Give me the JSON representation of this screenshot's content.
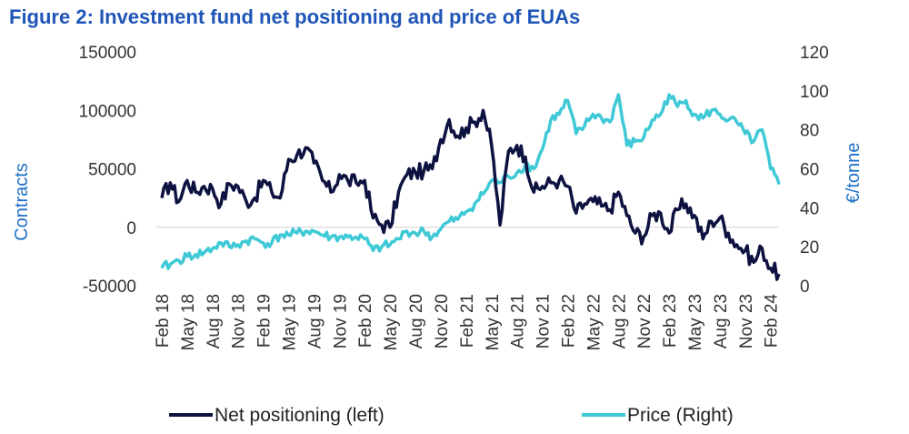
{
  "title": "Figure 2: Investment fund net positioning and price of EUAs",
  "colors": {
    "title": "#1f56b8",
    "net": "#0d1240",
    "price": "#3fc9d6",
    "axis_title": "#1f70c8",
    "zero_line": "#d0d0d0"
  },
  "chart_data": {
    "type": "line",
    "title": "Figure 2: Investment fund net positioning and price of EUAs",
    "xlabel": "",
    "ylabel_left": "Contracts",
    "ylabel_right": "€/tonne",
    "ylim_left": [
      -50000,
      150000
    ],
    "yticks_left": [
      -50000,
      0,
      50000,
      100000,
      150000
    ],
    "ylim_right": [
      0,
      120
    ],
    "yticks_right": [
      0,
      20,
      40,
      60,
      80,
      100,
      120
    ],
    "grid": false,
    "legend_position": "bottom",
    "x_tick_labels": [
      "Feb 18",
      "May 18",
      "Aug 18",
      "Nov 18",
      "Feb 19",
      "May 19",
      "Aug 19",
      "Nov 19",
      "Feb 20",
      "May 20",
      "Aug 20",
      "Nov 20",
      "Feb 21",
      "May 21",
      "Aug 21",
      "Nov 21",
      "Feb 22",
      "May 22",
      "Aug 22",
      "Nov 22",
      "Feb 23",
      "May 23",
      "Aug 23",
      "Nov 23",
      "Feb 24"
    ],
    "x_start": "2018-02",
    "series": [
      {
        "name": "Net positioning (left)",
        "axis": "left",
        "points": [
          [
            "2018-02",
            25000
          ],
          [
            "2018-03",
            38000
          ],
          [
            "2018-04",
            22000
          ],
          [
            "2018-05",
            40000
          ],
          [
            "2018-06",
            30000
          ],
          [
            "2018-07",
            35000
          ],
          [
            "2018-08",
            33000
          ],
          [
            "2018-09",
            20000
          ],
          [
            "2018-10",
            37000
          ],
          [
            "2018-11",
            35000
          ],
          [
            "2018-12",
            22000
          ],
          [
            "2019-01",
            25000
          ],
          [
            "2019-02",
            40000
          ],
          [
            "2019-03",
            30000
          ],
          [
            "2019-04",
            25000
          ],
          [
            "2019-05",
            58000
          ],
          [
            "2019-06",
            62000
          ],
          [
            "2019-07",
            68000
          ],
          [
            "2019-08",
            55000
          ],
          [
            "2019-09",
            40000
          ],
          [
            "2019-10",
            30000
          ],
          [
            "2019-11",
            45000
          ],
          [
            "2019-12",
            40000
          ],
          [
            "2020-01",
            38000
          ],
          [
            "2020-02",
            40000
          ],
          [
            "2020-03",
            8000
          ],
          [
            "2020-04",
            2000
          ],
          [
            "2020-05",
            0
          ],
          [
            "2020-06",
            30000
          ],
          [
            "2020-07",
            45000
          ],
          [
            "2020-08",
            47000
          ],
          [
            "2020-09",
            48000
          ],
          [
            "2020-10",
            50000
          ],
          [
            "2020-11",
            75000
          ],
          [
            "2020-12",
            92000
          ],
          [
            "2021-01",
            78000
          ],
          [
            "2021-02",
            85000
          ],
          [
            "2021-03",
            90000
          ],
          [
            "2021-04",
            100000
          ],
          [
            "2021-05",
            70000
          ],
          [
            "2021-06",
            2000
          ],
          [
            "2021-07",
            65000
          ],
          [
            "2021-08",
            70000
          ],
          [
            "2021-09",
            60000
          ],
          [
            "2021-10",
            30000
          ],
          [
            "2021-11",
            35000
          ],
          [
            "2021-12",
            38000
          ],
          [
            "2022-01",
            40000
          ],
          [
            "2022-02",
            35000
          ],
          [
            "2022-03",
            12000
          ],
          [
            "2022-04",
            20000
          ],
          [
            "2022-05",
            22000
          ],
          [
            "2022-06",
            18000
          ],
          [
            "2022-07",
            15000
          ],
          [
            "2022-08",
            30000
          ],
          [
            "2022-09",
            10000
          ],
          [
            "2022-10",
            -5000
          ],
          [
            "2022-11",
            -8000
          ],
          [
            "2022-12",
            10000
          ],
          [
            "2023-01",
            12000
          ],
          [
            "2023-02",
            -5000
          ],
          [
            "2023-03",
            15000
          ],
          [
            "2023-04",
            20000
          ],
          [
            "2023-05",
            10000
          ],
          [
            "2023-06",
            -10000
          ],
          [
            "2023-07",
            5000
          ],
          [
            "2023-08",
            8000
          ],
          [
            "2023-09",
            -5000
          ],
          [
            "2023-10",
            -15000
          ],
          [
            "2023-11",
            -20000
          ],
          [
            "2023-12",
            -30000
          ],
          [
            "2024-01",
            -18000
          ],
          [
            "2024-02",
            -35000
          ],
          [
            "2024-03",
            -40000
          ]
        ]
      },
      {
        "name": "Price (Right)",
        "axis": "right",
        "points": [
          [
            "2018-02",
            9
          ],
          [
            "2018-03",
            11
          ],
          [
            "2018-04",
            13
          ],
          [
            "2018-05",
            15
          ],
          [
            "2018-06",
            16
          ],
          [
            "2018-07",
            17
          ],
          [
            "2018-08",
            19
          ],
          [
            "2018-09",
            22
          ],
          [
            "2018-10",
            20
          ],
          [
            "2018-11",
            21
          ],
          [
            "2018-12",
            23
          ],
          [
            "2019-01",
            24
          ],
          [
            "2019-02",
            22
          ],
          [
            "2019-03",
            22
          ],
          [
            "2019-04",
            26
          ],
          [
            "2019-05",
            26
          ],
          [
            "2019-06",
            27
          ],
          [
            "2019-07",
            28
          ],
          [
            "2019-08",
            28
          ],
          [
            "2019-09",
            26
          ],
          [
            "2019-10",
            25
          ],
          [
            "2019-11",
            25
          ],
          [
            "2019-12",
            25
          ],
          [
            "2020-01",
            25
          ],
          [
            "2020-02",
            24
          ],
          [
            "2020-03",
            18
          ],
          [
            "2020-04",
            20
          ],
          [
            "2020-05",
            21
          ],
          [
            "2020-06",
            24
          ],
          [
            "2020-07",
            28
          ],
          [
            "2020-08",
            27
          ],
          [
            "2020-09",
            28
          ],
          [
            "2020-10",
            25
          ],
          [
            "2020-11",
            29
          ],
          [
            "2020-12",
            33
          ],
          [
            "2021-01",
            34
          ],
          [
            "2021-02",
            38
          ],
          [
            "2021-03",
            42
          ],
          [
            "2021-04",
            47
          ],
          [
            "2021-05",
            54
          ],
          [
            "2021-06",
            53
          ],
          [
            "2021-07",
            56
          ],
          [
            "2021-08",
            58
          ],
          [
            "2021-09",
            62
          ],
          [
            "2021-10",
            60
          ],
          [
            "2021-11",
            70
          ],
          [
            "2021-12",
            85
          ],
          [
            "2022-01",
            88
          ],
          [
            "2022-02",
            95
          ],
          [
            "2022-03",
            78
          ],
          [
            "2022-04",
            82
          ],
          [
            "2022-05",
            88
          ],
          [
            "2022-06",
            86
          ],
          [
            "2022-07",
            84
          ],
          [
            "2022-08",
            98
          ],
          [
            "2022-09",
            72
          ],
          [
            "2022-10",
            74
          ],
          [
            "2022-11",
            76
          ],
          [
            "2022-12",
            85
          ],
          [
            "2023-01",
            88
          ],
          [
            "2023-02",
            98
          ],
          [
            "2023-03",
            92
          ],
          [
            "2023-04",
            95
          ],
          [
            "2023-05",
            88
          ],
          [
            "2023-06",
            86
          ],
          [
            "2023-07",
            90
          ],
          [
            "2023-08",
            88
          ],
          [
            "2023-09",
            85
          ],
          [
            "2023-10",
            84
          ],
          [
            "2023-11",
            78
          ],
          [
            "2023-12",
            74
          ],
          [
            "2024-01",
            80
          ],
          [
            "2024-02",
            60
          ],
          [
            "2024-03",
            52
          ]
        ]
      }
    ]
  }
}
